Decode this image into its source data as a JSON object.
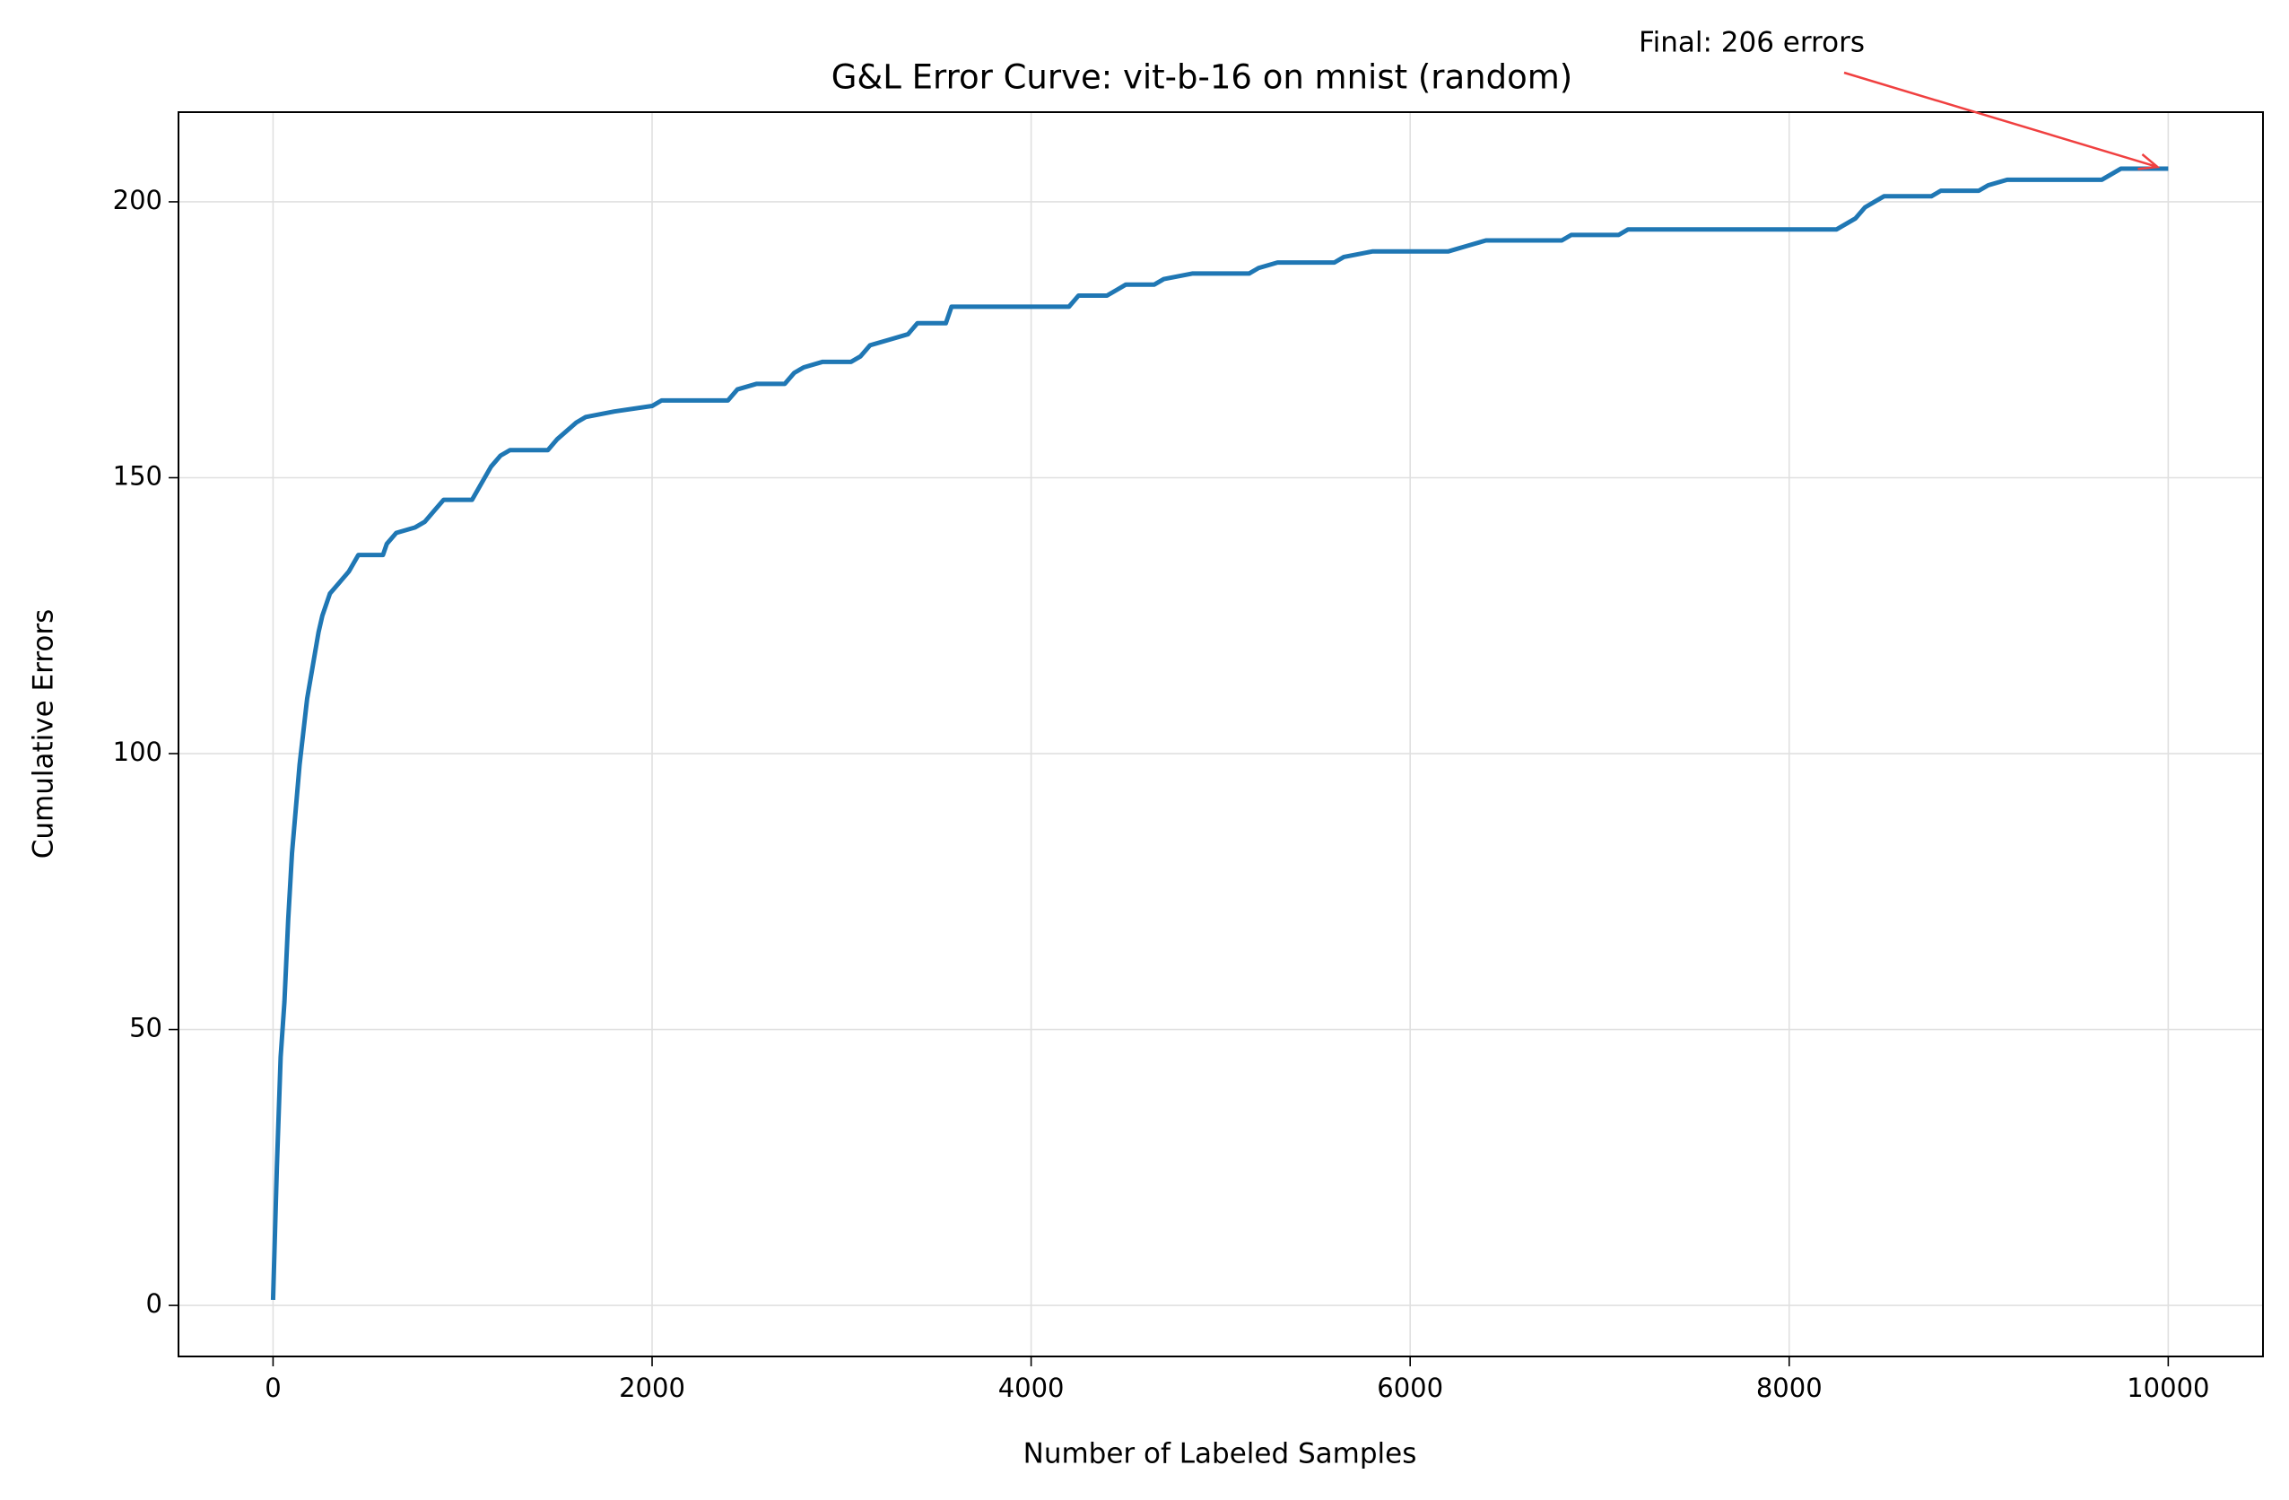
{
  "chart_data": {
    "type": "line",
    "title": "G&L Error Curve: vit-b-16 on mnist (random)",
    "x_label": "Number of Labeled Samples",
    "y_label": "Cumulative Errors",
    "annotation": "Final: 206 errors",
    "annotation_color": "#f04040",
    "xlim": [
      -499,
      10500
    ],
    "ylim": [
      -9.25,
      216.25
    ],
    "xticks": [
      0,
      2000,
      4000,
      6000,
      8000,
      10000
    ],
    "yticks": [
      0,
      50,
      100,
      150,
      200
    ],
    "grid": true,
    "x": [
      0,
      20,
      40,
      60,
      80,
      100,
      120,
      140,
      160,
      180,
      200,
      220,
      240,
      260,
      300,
      350,
      400,
      450,
      580,
      600,
      650,
      750,
      800,
      850,
      900,
      1050,
      1100,
      1150,
      1200,
      1250,
      1450,
      1500,
      1600,
      1650,
      1800,
      2000,
      2050,
      2400,
      2450,
      2550,
      2700,
      2750,
      2800,
      2900,
      3050,
      3100,
      3150,
      3250,
      3350,
      3400,
      3550,
      3580,
      4200,
      4250,
      4400,
      4450,
      4500,
      4650,
      4700,
      4850,
      5150,
      5200,
      5300,
      5600,
      5650,
      5800,
      6200,
      6300,
      6400,
      6800,
      6850,
      7100,
      7150,
      8250,
      8300,
      8350,
      8400,
      8450,
      8500,
      8750,
      8800,
      9000,
      9050,
      9150,
      9650,
      9700,
      9750,
      10000
    ],
    "series": [
      {
        "name": "vit-b-16",
        "color": "#1f77b4",
        "values": [
          1,
          25,
          45,
          55,
          70,
          82,
          90,
          98,
          104,
          110,
          114,
          118,
          122,
          125,
          129,
          131,
          133,
          136,
          136,
          138,
          140,
          141,
          142,
          144,
          146,
          146,
          149,
          152,
          154,
          155,
          155,
          157,
          160,
          161,
          162,
          163,
          164,
          164,
          166,
          167,
          167,
          169,
          170,
          171,
          171,
          172,
          174,
          175,
          176,
          178,
          178,
          181,
          181,
          183,
          183,
          184,
          185,
          185,
          186,
          187,
          187,
          188,
          189,
          189,
          190,
          191,
          191,
          192,
          193,
          193,
          194,
          194,
          195,
          195,
          196,
          197,
          199,
          200,
          201,
          201,
          202,
          202,
          203,
          204,
          204,
          205,
          206,
          206
        ]
      }
    ]
  }
}
